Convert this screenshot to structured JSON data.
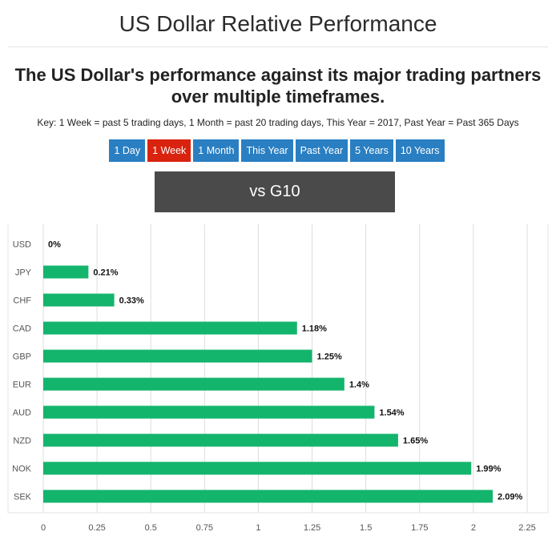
{
  "header": {
    "title": "US Dollar Relative Performance"
  },
  "subtitle": "The US Dollar's performance against its major trading partners over multiple timeframes.",
  "key": "Key: 1 Week = past 5 trading days, 1 Month = past 20 trading days, This Year = 2017, Past Year = Past 365 Days",
  "timeframes": [
    {
      "label": "1 Day",
      "active": false
    },
    {
      "label": "1 Week",
      "active": true
    },
    {
      "label": "1 Month",
      "active": false
    },
    {
      "label": "This Year",
      "active": false
    },
    {
      "label": "Past Year",
      "active": false
    },
    {
      "label": "5 Years",
      "active": false
    },
    {
      "label": "10 Years",
      "active": false
    }
  ],
  "group_label": "vs G10",
  "colors": {
    "bar": "#13b56c",
    "button": "#2a7fc2",
    "button_active": "#d9230f",
    "group_box": "#4a4a4a"
  },
  "chart_data": {
    "type": "bar",
    "orientation": "horizontal",
    "categories": [
      "USD",
      "JPY",
      "CHF",
      "CAD",
      "GBP",
      "EUR",
      "AUD",
      "NZD",
      "NOK",
      "SEK"
    ],
    "values": [
      0,
      0.21,
      0.33,
      1.18,
      1.25,
      1.4,
      1.54,
      1.65,
      1.99,
      2.09
    ],
    "data_labels": [
      "0%",
      "0.21%",
      "0.33%",
      "1.18%",
      "1.25%",
      "1.4%",
      "1.54%",
      "1.65%",
      "1.99%",
      "2.09%"
    ],
    "xlim": [
      0,
      2.25
    ],
    "xticks": [
      0,
      0.25,
      0.5,
      0.75,
      1,
      1.25,
      1.5,
      1.75,
      2,
      2.25
    ],
    "xtick_labels": [
      "0",
      "0.25",
      "0.5",
      "0.75",
      "1",
      "1.25",
      "1.5",
      "1.75",
      "2",
      "2.25"
    ],
    "grid": true,
    "legend": false
  }
}
